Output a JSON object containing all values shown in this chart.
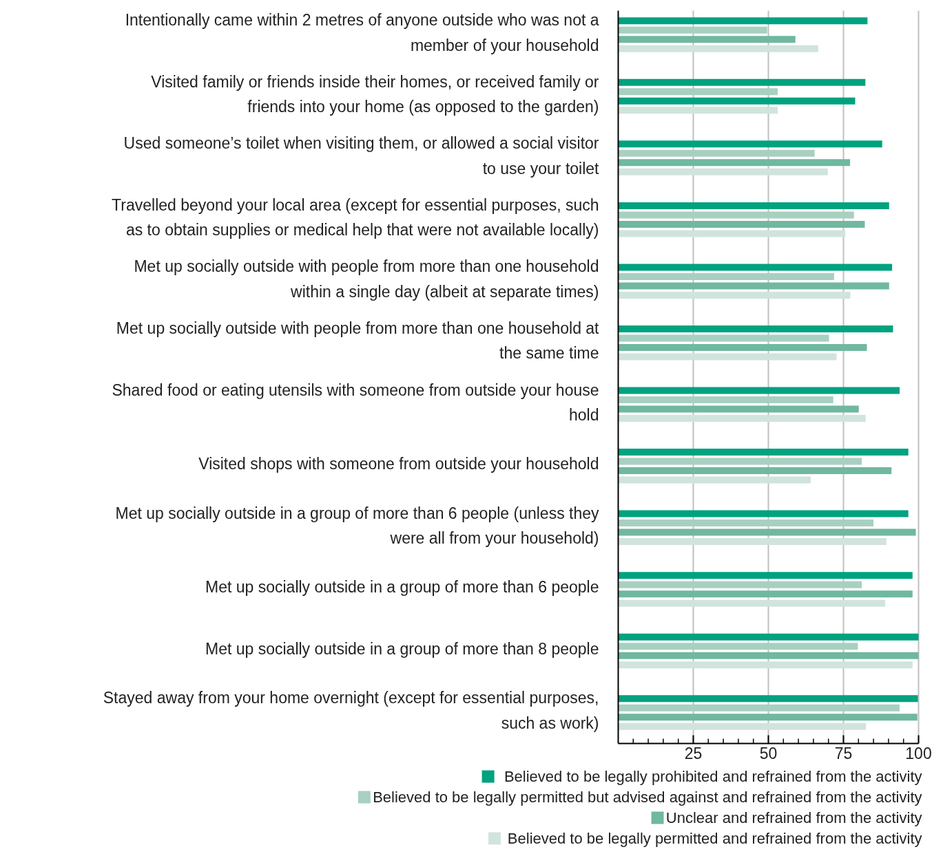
{
  "chart_data": {
    "type": "bar",
    "orientation": "horizontal",
    "categories": [
      "Intentionally came within 2 metres of anyone outside who was not a member of your household",
      "Visited family or friends inside their homes, or received family or friends into your home (as opposed to the garden)",
      "Used someone’s toilet when visiting them, or allowed a social visitor to use your toilet",
      "Travelled beyond your local area (except for essential purposes, such as to obtain supplies or medical help that were not available locally)",
      "Met up socially outside with people from more than one household within a single day (albeit at separate times)",
      "Met up socially outside with people from more than one household at the same time",
      "Shared food or eating utensils with someone from outside your house hold",
      "Visited shops with someone from outside your household",
      "Met up socially outside in a group of more than 6 people (unless they were all from your household)",
      "Met up socially outside in a group of more than 6 people",
      "Met up socially outside in a group of more than 8 people",
      "Stayed away from your home overnight (except for essential purposes, such as work)"
    ],
    "series": [
      {
        "name": "Believed to be legally prohibited and refrained from the activity",
        "color": "#00a27f",
        "values": [
          83.0,
          82.3,
          87.9,
          90.2,
          91.2,
          91.5,
          93.7,
          96.6,
          96.6,
          98.0,
          100,
          99.8
        ]
      },
      {
        "name": "Believed to be legally permitted but advised against and refrained from the activity",
        "color": "#a8d0c0",
        "values": [
          49.6,
          53.1,
          65.4,
          78.5,
          71.9,
          70.2,
          71.6,
          81.1,
          85.0,
          81.1,
          79.8,
          93.7
        ]
      },
      {
        "name": "Unclear and refrained from the activity",
        "color": "#70b8a0",
        "colors": [
          "#70b8a0",
          "#00a27f",
          "#70b8a0",
          "#70b8a0",
          "#70b8a0",
          "#70b8a0",
          "#70b8a0",
          "#70b8a0",
          "#70b8a0",
          "#70b8a0",
          "#70b8a0",
          "#70b8a0"
        ],
        "values": [
          59.0,
          78.9,
          77.2,
          82.1,
          90.2,
          82.8,
          80.1,
          91.0,
          99.1,
          98.0,
          100,
          99.6
        ]
      },
      {
        "name": "Believed to be legally permitted and refrained from the activity",
        "color": "#d0e4dc",
        "values": [
          66.6,
          53.1,
          69.8,
          75.6,
          77.3,
          72.7,
          82.4,
          64.1,
          89.3,
          88.9,
          98.0,
          82.5
        ]
      }
    ],
    "xlim": [
      0,
      100
    ],
    "xticks": [
      {
        "value": 5,
        "label": null
      },
      {
        "value": 10,
        "label": null
      },
      {
        "value": 15,
        "label": null
      },
      {
        "value": 20,
        "label": null
      },
      25,
      {
        "value": 30,
        "label": null
      },
      {
        "value": 35,
        "label": null
      },
      {
        "value": 40,
        "label": null
      },
      {
        "value": 45,
        "label": null
      },
      50,
      {
        "value": 55,
        "label": null
      },
      {
        "value": 60,
        "label": null
      },
      {
        "value": 65,
        "label": null
      },
      {
        "value": 70,
        "label": null
      },
      75,
      {
        "value": 80,
        "label": null
      },
      {
        "value": 85,
        "label": null
      },
      {
        "value": 90,
        "label": null
      },
      {
        "value": 95,
        "label": null
      },
      100
    ],
    "grid": "x",
    "legend": "bottom"
  }
}
